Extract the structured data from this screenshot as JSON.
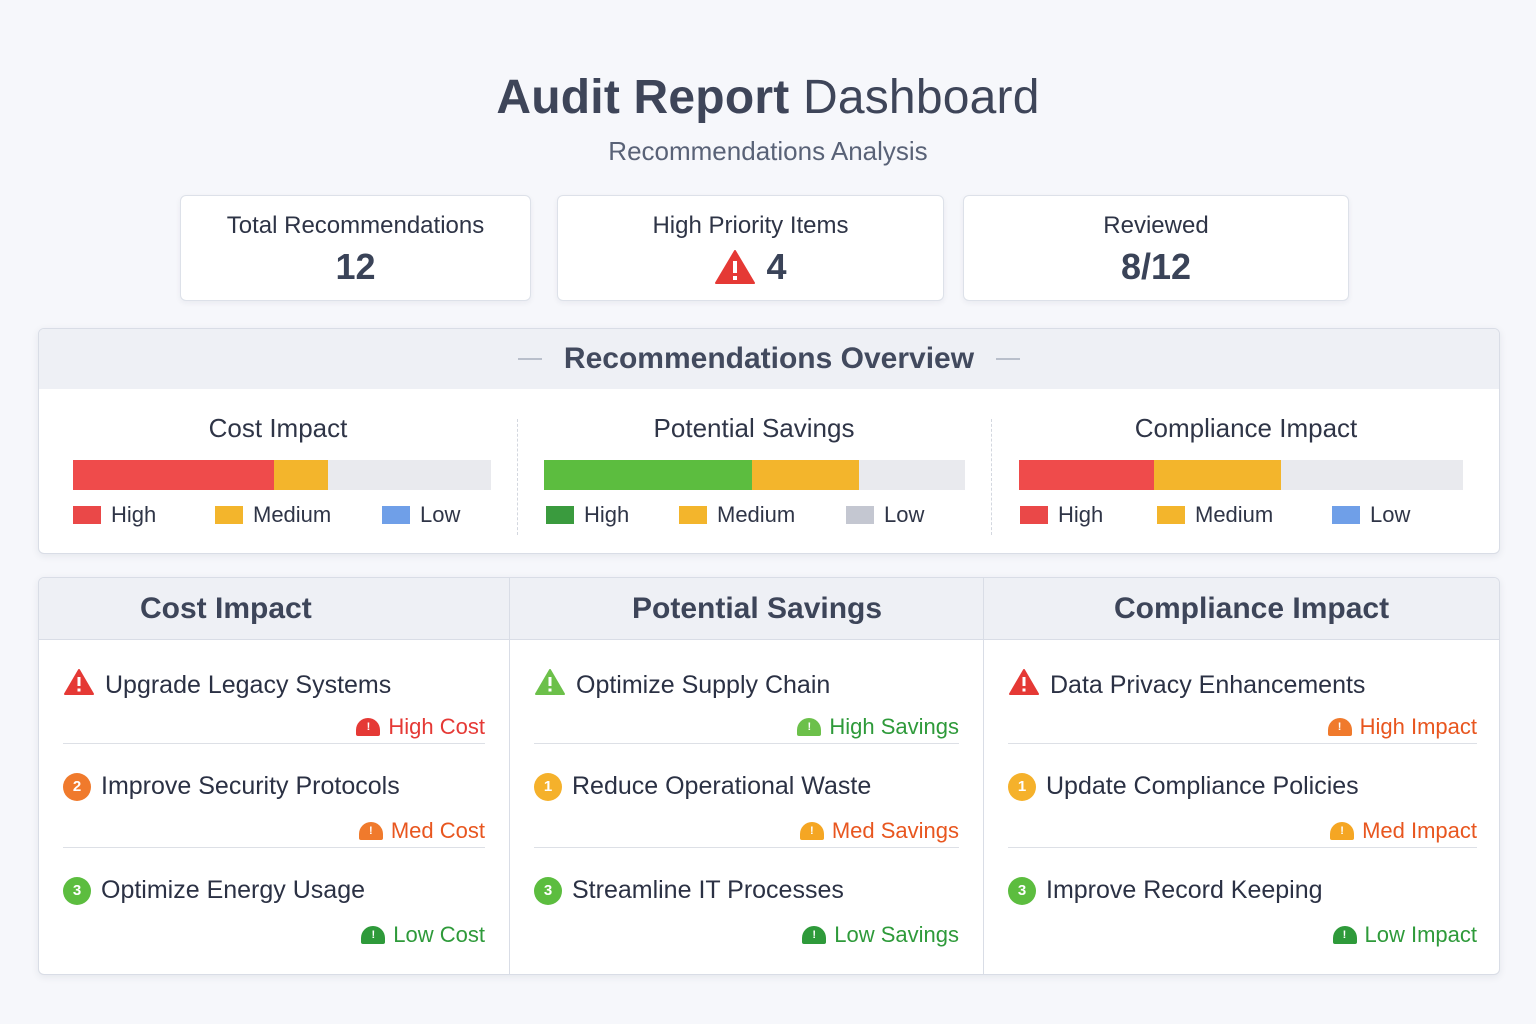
{
  "header": {
    "title_bold": "Audit Report",
    "title_regular": "Dashboard",
    "subtitle": "Recommendations Analysis"
  },
  "stats": [
    {
      "label": "Total Recommendations",
      "value": "12"
    },
    {
      "label": "High Priority Items",
      "value": "4",
      "icon": "warning-triangle-icon"
    },
    {
      "label": "Reviewed",
      "value": "8/12"
    }
  ],
  "overview": {
    "title": "Recommendations Overview",
    "charts": [
      {
        "title": "Cost Impact",
        "segments": [
          {
            "level": "High",
            "share": 0.48,
            "color": "#ef4b4b"
          },
          {
            "level": "Medium",
            "share": 0.13,
            "color": "#f3b52c"
          }
        ],
        "legend": [
          {
            "label": "High",
            "color": "#ea4848"
          },
          {
            "label": "Medium",
            "color": "#f3b52c"
          },
          {
            "label": "Low",
            "color": "#6f9fe8"
          }
        ]
      },
      {
        "title": "Potential Savings",
        "segments": [
          {
            "level": "High",
            "share": 0.495,
            "color": "#5cbd3f"
          },
          {
            "level": "Medium",
            "share": 0.253,
            "color": "#f3b52c"
          }
        ],
        "legend": [
          {
            "label": "High",
            "color": "#3a9b3e"
          },
          {
            "label": "Medium",
            "color": "#f3b52c"
          },
          {
            "label": "Low",
            "color": "#c4c7d1"
          }
        ]
      },
      {
        "title": "Compliance Impact",
        "segments": [
          {
            "level": "High",
            "share": 0.305,
            "color": "#ef4b4b"
          },
          {
            "level": "Medium",
            "share": 0.284,
            "color": "#f3b52c"
          }
        ],
        "legend": [
          {
            "label": "High",
            "color": "#ea4848"
          },
          {
            "label": "Medium",
            "color": "#f3b52c"
          },
          {
            "label": "Low",
            "color": "#6f9fe8"
          }
        ]
      }
    ]
  },
  "lists": [
    {
      "title": "Cost Impact",
      "items": [
        {
          "title": "Upgrade Legacy Systems",
          "marker": "warning-triangle-icon",
          "marker_color": "#e53935",
          "tag": "High Cost",
          "tag_color": "#e53935",
          "tag_icon": "alert-mound-icon"
        },
        {
          "title": "Improve Security Protocols",
          "marker": "2",
          "marker_color": "#f07a2c",
          "tag": "Med Cost",
          "tag_color": "#e8561f",
          "tag_icon": "alert-mound-icon",
          "tag_icon_color": "#f07a2c"
        },
        {
          "title": "Optimize Energy Usage",
          "marker": "3",
          "marker_color": "#5cbd3f",
          "tag": "Low Cost",
          "tag_color": "#2e9a3a",
          "tag_icon": "alert-mound-icon"
        }
      ]
    },
    {
      "title": "Potential Savings",
      "items": [
        {
          "title": "Optimize Supply Chain",
          "marker": "warning-triangle-icon",
          "marker_color": "#6cc04a",
          "tag": "High Savings",
          "tag_color": "#2e9a3a",
          "tag_icon": "alert-mound-icon",
          "tag_icon_color": "#6cc04a"
        },
        {
          "title": "Reduce Operational Waste",
          "marker": "1",
          "marker_color": "#f5b12b",
          "tag": "Med Savings",
          "tag_color": "#e8561f",
          "tag_icon": "alert-mound-icon",
          "tag_icon_color": "#f5a623"
        },
        {
          "title": "Streamline IT Processes",
          "marker": "3",
          "marker_color": "#5cbd3f",
          "tag": "Low Savings",
          "tag_color": "#2e9a3a",
          "tag_icon": "alert-mound-icon"
        }
      ]
    },
    {
      "title": "Compliance Impact",
      "items": [
        {
          "title": "Data Privacy Enhancements",
          "marker": "warning-triangle-icon",
          "marker_color": "#e53935",
          "tag": "High Impact",
          "tag_color": "#e8561f",
          "tag_icon": "alert-mound-icon",
          "tag_icon_color": "#f07a2c"
        },
        {
          "title": "Update Compliance Policies",
          "marker": "1",
          "marker_color": "#f5b12b",
          "tag": "Med Impact",
          "tag_color": "#e8561f",
          "tag_icon": "alert-mound-icon",
          "tag_icon_color": "#f5a623"
        },
        {
          "title": "Improve Record Keeping",
          "marker": "3",
          "marker_color": "#5cbd3f",
          "tag": "Low Impact",
          "tag_color": "#2e9a3a",
          "tag_icon": "alert-mound-icon"
        }
      ]
    }
  ]
}
